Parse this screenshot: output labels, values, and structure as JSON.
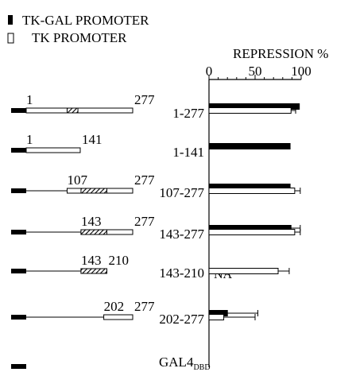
{
  "chart_data": {
    "type": "bar",
    "orientation": "horizontal",
    "legend": [
      {
        "label": "TK-GAL PROMOTER",
        "fill": "#000000"
      },
      {
        "label": "TK PROMOTER",
        "fill": "#ffffff"
      }
    ],
    "legend_position": "top-left",
    "axis_title": "REPRESSION %",
    "xlim": [
      0,
      100
    ],
    "ticks": [
      "0",
      "50",
      "100"
    ],
    "minor_tick_step": 10,
    "grid": false,
    "colors": {
      "tk_gal": "#000000",
      "tk": "#ffffff",
      "stroke": "#000000",
      "domain": "#ffffff",
      "hatch": "#000000"
    },
    "categories": [
      "1-277",
      "1-141",
      "107-277",
      "143-277",
      "143-210",
      "202-277",
      "GAL4DBD"
    ],
    "category_labels": [
      {
        "main": "1-277",
        "sub": ""
      },
      {
        "main": "1-141",
        "sub": ""
      },
      {
        "main": "107-277",
        "sub": ""
      },
      {
        "main": "143-277",
        "sub": ""
      },
      {
        "main": "143-210",
        "sub": ""
      },
      {
        "main": "202-277",
        "sub": ""
      },
      {
        "main": "GAL4",
        "sub": "DBD"
      }
    ],
    "series": [
      {
        "name": "TK-GAL PROMOTER",
        "values": [
          98,
          88,
          88,
          89,
          null,
          20,
          null
        ],
        "errors": [
          null,
          null,
          null,
          10,
          null,
          33,
          null
        ]
      },
      {
        "name": "TK PROMOTER",
        "values": [
          89,
          null,
          93,
          93,
          75,
          16,
          null
        ],
        "errors": [
          5,
          null,
          6,
          6,
          12,
          34,
          null
        ]
      }
    ],
    "annotations": [
      {
        "category": "143-210",
        "series": "TK-GAL PROMOTER",
        "text": "NA"
      }
    ],
    "constructs": [
      {
        "start": 1,
        "end": 277,
        "start_label": "1",
        "end_label": "277",
        "hatched": [
          107,
          135
        ]
      },
      {
        "start": 1,
        "end": 141,
        "start_label": "1",
        "end_label": "141",
        "hatched": null
      },
      {
        "start": 107,
        "end": 277,
        "start_label": "107",
        "end_label": "277",
        "hatched": [
          143,
          210
        ]
      },
      {
        "start": 143,
        "end": 277,
        "start_label": "143",
        "end_label": "277",
        "hatched": [
          143,
          210
        ]
      },
      {
        "start": 143,
        "end": 210,
        "start_label": "143",
        "end_label": "210",
        "hatched": [
          143,
          210
        ]
      },
      {
        "start": 202,
        "end": 277,
        "start_label": "202",
        "end_label": "277",
        "hatched": null
      },
      {
        "start": null,
        "end": null,
        "start_label": "",
        "end_label": "",
        "hatched": null
      }
    ]
  }
}
